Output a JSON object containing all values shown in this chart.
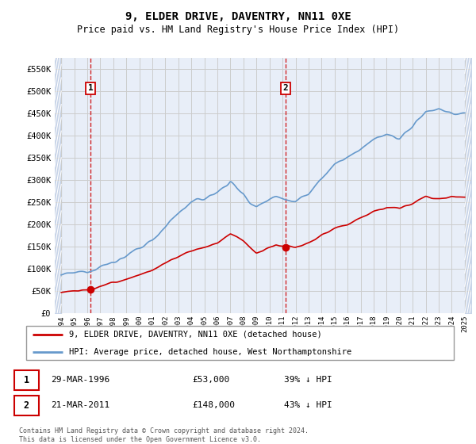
{
  "title": "9, ELDER DRIVE, DAVENTRY, NN11 0XE",
  "subtitle": "Price paid vs. HM Land Registry's House Price Index (HPI)",
  "title_fontsize": 10,
  "subtitle_fontsize": 8.5,
  "ylabel_ticks": [
    "£0",
    "£50K",
    "£100K",
    "£150K",
    "£200K",
    "£250K",
    "£300K",
    "£350K",
    "£400K",
    "£450K",
    "£500K",
    "£550K"
  ],
  "ytick_values": [
    0,
    50000,
    100000,
    150000,
    200000,
    250000,
    300000,
    350000,
    400000,
    450000,
    500000,
    550000
  ],
  "ylim": [
    0,
    575000
  ],
  "xlim_start": 1993.5,
  "xlim_end": 2025.5,
  "transaction1_x": 1996.24,
  "transaction1_y": 53000,
  "transaction2_x": 2011.22,
  "transaction2_y": 148000,
  "legend_line1": "9, ELDER DRIVE, DAVENTRY, NN11 0XE (detached house)",
  "legend_line2": "HPI: Average price, detached house, West Northamptonshire",
  "note1_num": "1",
  "note1_date": "29-MAR-1996",
  "note1_price": "£53,000",
  "note1_hpi": "39% ↓ HPI",
  "note2_num": "2",
  "note2_date": "21-MAR-2011",
  "note2_price": "£148,000",
  "note2_hpi": "43% ↓ HPI",
  "footnote": "Contains HM Land Registry data © Crown copyright and database right 2024.\nThis data is licensed under the Open Government Licence v3.0.",
  "red_color": "#cc0000",
  "blue_color": "#6699cc",
  "grid_color": "#cccccc",
  "hatch_color": "#c8d4e8",
  "bg_color": "#e8eef8"
}
